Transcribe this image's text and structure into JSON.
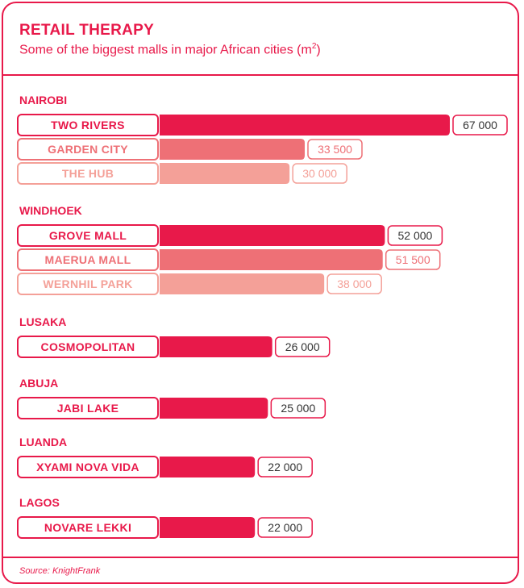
{
  "header": {
    "title": "RETAIL THERAPY",
    "subtitle": "Some of the biggest malls in major African cities (m",
    "subtitle_sup": "2",
    "subtitle_end": ")"
  },
  "footer": {
    "source": "Source: KnightFrank"
  },
  "colors": {
    "accent": "#e8194a",
    "shade1": "#e8194a",
    "shade2": "#ee7076",
    "shade3": "#f4a098"
  },
  "chart_data": {
    "type": "bar",
    "orientation": "horizontal",
    "title": "RETAIL THERAPY",
    "subtitle": "Some of the biggest malls in major African cities (m2)",
    "grid": false,
    "groups": [
      {
        "city": "NAIROBI",
        "malls": [
          {
            "name": "TWO RIVERS",
            "value": 67000,
            "value_label": "67 000"
          },
          {
            "name": "GARDEN CITY",
            "value": 33500,
            "value_label": "33 500"
          },
          {
            "name": "THE HUB",
            "value": 30000,
            "value_label": "30 000"
          }
        ]
      },
      {
        "city": "WINDHOEK",
        "malls": [
          {
            "name": "GROVE MALL",
            "value": 52000,
            "value_label": "52 000"
          },
          {
            "name": "MAERUA MALL",
            "value": 51500,
            "value_label": "51 500"
          },
          {
            "name": "WERNHIL PARK",
            "value": 38000,
            "value_label": "38 000"
          }
        ]
      },
      {
        "city": "LUSAKA",
        "malls": [
          {
            "name": "COSMOPOLITAN",
            "value": 26000,
            "value_label": "26 000"
          }
        ]
      },
      {
        "city": "ABUJA",
        "malls": [
          {
            "name": "JABI LAKE",
            "value": 25000,
            "value_label": "25 000"
          }
        ]
      },
      {
        "city": "LUANDA",
        "malls": [
          {
            "name": "XYAMI NOVA VIDA",
            "value": 22000,
            "value_label": "22 000"
          }
        ]
      },
      {
        "city": "LAGOS",
        "malls": [
          {
            "name": "NOVARE LEKKI",
            "value": 22000,
            "value_label": "22 000"
          }
        ]
      }
    ]
  }
}
